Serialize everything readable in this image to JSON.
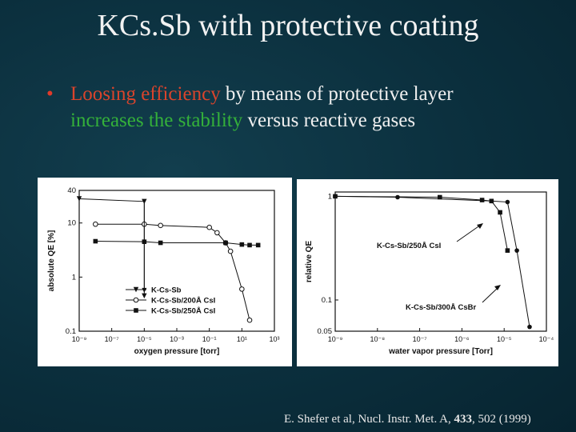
{
  "slide": {
    "title": "KCs.Sb with protective coating",
    "bullet": {
      "part1_red": "Loosing efficiency",
      "part2": " by means of protective layer",
      "part3_green": "increases the stability",
      "part4": " versus reactive gases"
    },
    "citation": {
      "prefix": "E. Shefer et al, Nucl. Instr. Met. A, ",
      "volume": "433",
      "suffix": ", 502 (1999)"
    }
  },
  "chart_data": [
    {
      "type": "line",
      "xlabel": "oxygen pressure [torr]",
      "ylabel": "absolute QE [%]",
      "x_scale": "log",
      "y_scale": "log",
      "xlim": [
        1e-09,
        1000
      ],
      "ylim": [
        0.1,
        40
      ],
      "x_ticks": [
        "10⁻⁹",
        "10⁻⁷",
        "10⁻⁵",
        "10⁻³",
        "10⁻¹",
        "10¹",
        "10³"
      ],
      "x_tick_values": [
        1e-09,
        1e-07,
        1e-05,
        0.001,
        0.1,
        10,
        1000
      ],
      "y_ticks": [
        "0.1",
        "1",
        "10",
        "40"
      ],
      "y_tick_values": [
        0.1,
        1,
        10,
        40
      ],
      "series": [
        {
          "name": "K-Cs-Sb",
          "marker": "triangle-down",
          "x": [
            1e-09,
            1e-05,
            1e-05
          ],
          "y": [
            28,
            25,
            0.45
          ]
        },
        {
          "name": "K-Cs-Sb/200Å CsI",
          "marker": "open-circle",
          "x": [
            1e-08,
            1e-05,
            0.0001,
            0.1,
            0.3,
            1,
            2,
            10,
            30
          ],
          "y": [
            9.5,
            9.5,
            9.0,
            8.3,
            6.6,
            4.3,
            3.0,
            0.6,
            0.16
          ]
        },
        {
          "name": "K-Cs-Sb/250Å CsI",
          "marker": "filled-square",
          "x": [
            1e-08,
            1e-05,
            0.0001,
            1,
            10,
            30,
            100
          ],
          "y": [
            4.6,
            4.5,
            4.3,
            4.3,
            4.0,
            3.9,
            3.9
          ]
        }
      ]
    },
    {
      "type": "line",
      "xlabel": "water vapor pressure [Torr]",
      "ylabel": "relative QE",
      "x_scale": "log",
      "y_scale": "log",
      "xlim": [
        1e-09,
        0.0001
      ],
      "ylim": [
        0.05,
        1.1
      ],
      "x_ticks": [
        "10⁻⁹",
        "10⁻⁸",
        "10⁻⁷",
        "10⁻⁶",
        "10⁻⁵",
        "10⁻⁴"
      ],
      "x_tick_values": [
        1e-09,
        1e-08,
        1e-07,
        1e-06,
        1e-05,
        0.0001
      ],
      "y_ticks": [
        "1",
        "0.1",
        "0.05"
      ],
      "y_tick_values": [
        1,
        0.1,
        0.05
      ],
      "annotations": [
        "K-Cs-Sb/250Å CsI",
        "K-Cs-Sb/300Å CsBr"
      ],
      "series": [
        {
          "name": "K-Cs-Sb/250Å CsI",
          "marker": "filled-square",
          "x": [
            1e-09,
            3e-07,
            3e-06,
            5e-06,
            8e-06,
            1.2e-05
          ],
          "y": [
            1.0,
            0.98,
            0.92,
            0.9,
            0.7,
            0.3
          ]
        },
        {
          "name": "K-Cs-Sb/300Å CsBr",
          "marker": "filled-circle",
          "x": [
            1e-09,
            3e-08,
            5e-06,
            1.2e-05,
            2e-05,
            4e-05
          ],
          "y": [
            1.0,
            0.98,
            0.9,
            0.88,
            0.3,
            0.055
          ]
        }
      ]
    }
  ]
}
